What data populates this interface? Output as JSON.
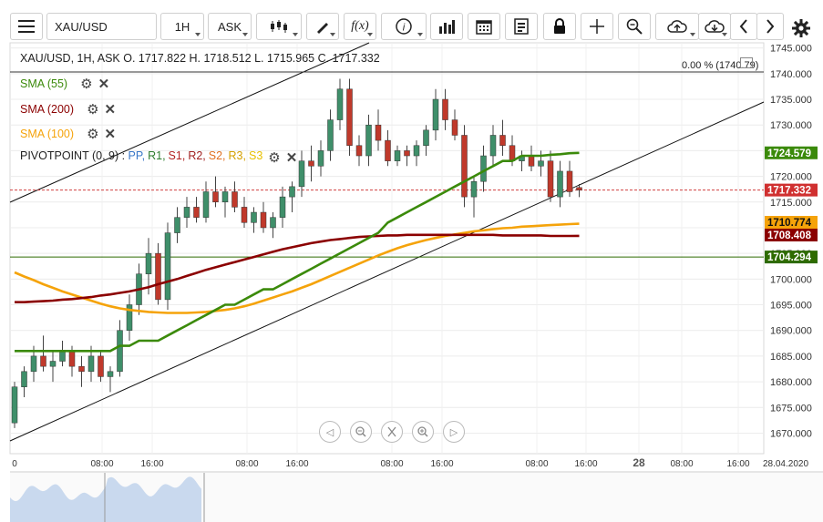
{
  "toolbar": {
    "symbol": "XAU/USD",
    "timeframe": "1H",
    "price_side": "ASK",
    "fx_label": "f(x)",
    "icons": [
      "menu-icon",
      "candlestick-icon",
      "draw-icon",
      "function-icon",
      "info-icon",
      "bar-chart-icon",
      "calendar-icon",
      "report-icon",
      "lock-icon",
      "crosshair-icon",
      "zoom-icon",
      "cloud-upload-icon",
      "cloud-download-icon",
      "chevron-left-icon",
      "chevron-right-icon",
      "settings-icon"
    ]
  },
  "legend": {
    "ohlc": "XAU/USD, 1H, ASK   O. 1717.822 H. 1718.512 L. 1715.965 C. 1717.332",
    "sma55": "SMA (55)",
    "sma200": "SMA (200)",
    "sma100": "SMA (100)",
    "pivot_name": "PIVOTPOINT (0, 9)",
    "pivot_sep": " : ",
    "pivot_items": [
      "PP,",
      "R1,",
      "S1,",
      "R2,",
      "S2,",
      "R3,",
      "S3"
    ],
    "pct_label": "0.00 % (1740.79)"
  },
  "colors": {
    "up": "#3f8f6a",
    "down": "#c0392b",
    "sma55": "#3b8a0a",
    "sma200": "#8b0000",
    "sma100": "#f5a30a",
    "pp": "#3a78c8",
    "r1": "#2e7d2e",
    "s1": "#b22222",
    "r2": "#a02020",
    "s2": "#e07020",
    "r3": "#d4a000",
    "s3": "#e8c000"
  },
  "chart_data": {
    "type": "candlestick",
    "title": "XAU/USD, 1H, ASK",
    "ylim": [
      1666,
      1746
    ],
    "y_ticks": [
      "1745.000",
      "1740.000",
      "1735.000",
      "1730.000",
      "1725.000",
      "1720.000",
      "1715.000",
      "1710.000",
      "1705.000",
      "1700.000",
      "1695.000",
      "1690.000",
      "1685.000",
      "1680.000",
      "1675.000",
      "1670.000"
    ],
    "x_ticks": [
      "0",
      "08:00",
      "16:00",
      "08:00",
      "16:00",
      "08:00",
      "16:00",
      "08:00",
      "16:00",
      "28",
      "08:00",
      "16:00",
      "28.04.2020"
    ],
    "price_labels": [
      {
        "name": "sma55",
        "value": "1724.579"
      },
      {
        "name": "last",
        "value": "1717.332"
      },
      {
        "name": "sma100",
        "value": "1710.774"
      },
      {
        "name": "sma200",
        "value": "1708.408"
      },
      {
        "name": "level",
        "value": "1704.294"
      }
    ],
    "candles": [
      [
        1672,
        1680,
        1671,
        1679
      ],
      [
        1679,
        1683,
        1677,
        1682
      ],
      [
        1682,
        1687,
        1680,
        1685
      ],
      [
        1685,
        1689,
        1682,
        1683
      ],
      [
        1683,
        1686,
        1680,
        1684
      ],
      [
        1684,
        1688,
        1683,
        1686
      ],
      [
        1686,
        1687,
        1681,
        1683
      ],
      [
        1683,
        1685,
        1679,
        1682
      ],
      [
        1682,
        1687,
        1680,
        1685
      ],
      [
        1685,
        1686,
        1680,
        1681
      ],
      [
        1681,
        1683,
        1678,
        1682
      ],
      [
        1682,
        1692,
        1681,
        1690
      ],
      [
        1690,
        1697,
        1688,
        1695
      ],
      [
        1695,
        1703,
        1693,
        1701
      ],
      [
        1701,
        1708,
        1697,
        1705
      ],
      [
        1705,
        1707,
        1695,
        1696
      ],
      [
        1696,
        1711,
        1694,
        1709
      ],
      [
        1709,
        1714,
        1707,
        1712
      ],
      [
        1712,
        1716,
        1710,
        1714
      ],
      [
        1714,
        1716,
        1711,
        1712
      ],
      [
        1712,
        1719,
        1711,
        1717
      ],
      [
        1717,
        1720,
        1714,
        1715
      ],
      [
        1715,
        1718,
        1712,
        1717
      ],
      [
        1717,
        1719,
        1713,
        1714
      ],
      [
        1714,
        1716,
        1710,
        1711
      ],
      [
        1711,
        1714,
        1709,
        1713
      ],
      [
        1713,
        1715,
        1709,
        1710
      ],
      [
        1710,
        1713,
        1708,
        1712
      ],
      [
        1712,
        1718,
        1710,
        1716
      ],
      [
        1716,
        1719,
        1713,
        1718
      ],
      [
        1718,
        1725,
        1716,
        1723
      ],
      [
        1723,
        1726,
        1719,
        1722
      ],
      [
        1722,
        1727,
        1720,
        1725
      ],
      [
        1725,
        1733,
        1723,
        1731
      ],
      [
        1731,
        1739,
        1729,
        1737
      ],
      [
        1737,
        1739,
        1724,
        1726
      ],
      [
        1726,
        1728,
        1722,
        1724
      ],
      [
        1724,
        1732,
        1722,
        1730
      ],
      [
        1730,
        1733,
        1725,
        1727
      ],
      [
        1727,
        1729,
        1722,
        1723
      ],
      [
        1723,
        1726,
        1722,
        1725
      ],
      [
        1725,
        1726,
        1722,
        1724
      ],
      [
        1724,
        1727,
        1722,
        1726
      ],
      [
        1726,
        1730,
        1724,
        1729
      ],
      [
        1729,
        1737,
        1727,
        1735
      ],
      [
        1735,
        1737,
        1729,
        1731
      ],
      [
        1731,
        1733,
        1727,
        1728
      ],
      [
        1728,
        1730,
        1714,
        1716
      ],
      [
        1716,
        1720,
        1712,
        1719
      ],
      [
        1719,
        1726,
        1717,
        1724
      ],
      [
        1724,
        1730,
        1722,
        1728
      ],
      [
        1728,
        1731,
        1724,
        1726
      ],
      [
        1726,
        1728,
        1722,
        1723
      ],
      [
        1723,
        1725,
        1721,
        1724
      ],
      [
        1724,
        1726,
        1721,
        1722
      ],
      [
        1722,
        1725,
        1720,
        1723
      ],
      [
        1723,
        1725,
        1715,
        1716
      ],
      [
        1716,
        1723,
        1714,
        1721
      ],
      [
        1721,
        1723,
        1716,
        1717
      ],
      [
        1717.822,
        1718.512,
        1715.965,
        1717.332
      ]
    ],
    "sma55": [
      1686,
      1686,
      1686,
      1686,
      1686,
      1686,
      1686,
      1686,
      1686,
      1686,
      1686,
      1687,
      1687,
      1688,
      1688,
      1688,
      1689,
      1690,
      1691,
      1692,
      1693,
      1694,
      1695,
      1695,
      1696,
      1697,
      1698,
      1698,
      1699,
      1700,
      1701,
      1702,
      1703,
      1704,
      1705,
      1706,
      1707,
      1708,
      1709,
      1711,
      1712,
      1713,
      1714,
      1715,
      1716,
      1717,
      1718,
      1719,
      1720,
      1721,
      1722,
      1723,
      1723,
      1724,
      1724,
      1724,
      1724.2,
      1724.3,
      1724.5,
      1724.579
    ],
    "sma200": [
      1695.5,
      1695.5,
      1695.6,
      1695.7,
      1695.8,
      1696,
      1696.1,
      1696.3,
      1696.5,
      1696.8,
      1697,
      1697.3,
      1697.6,
      1698,
      1698.4,
      1699,
      1699.5,
      1700,
      1700.6,
      1701.2,
      1701.8,
      1702.3,
      1702.8,
      1703.3,
      1703.8,
      1704.3,
      1704.8,
      1705.3,
      1705.8,
      1706.2,
      1706.6,
      1707,
      1707.3,
      1707.6,
      1707.8,
      1708,
      1708.2,
      1708.3,
      1708.4,
      1708.5,
      1708.5,
      1708.6,
      1708.6,
      1708.6,
      1708.6,
      1708.6,
      1708.6,
      1708.6,
      1708.6,
      1708.6,
      1708.6,
      1708.5,
      1708.5,
      1708.5,
      1708.5,
      1708.5,
      1708.4,
      1708.4,
      1708.4,
      1708.408
    ],
    "sma100": [
      1701.3,
      1700.5,
      1699.8,
      1699,
      1698.3,
      1697.6,
      1697,
      1696.4,
      1695.8,
      1695.2,
      1694.7,
      1694.3,
      1694,
      1693.8,
      1693.6,
      1693.5,
      1693.4,
      1693.4,
      1693.4,
      1693.5,
      1693.6,
      1693.8,
      1694,
      1694.3,
      1694.7,
      1695.2,
      1695.8,
      1696.4,
      1697,
      1697.6,
      1698.3,
      1699,
      1699.8,
      1700.6,
      1701.4,
      1702.2,
      1703,
      1703.8,
      1704.6,
      1705.3,
      1706,
      1706.6,
      1707.1,
      1707.6,
      1708,
      1708.4,
      1708.7,
      1709,
      1709.3,
      1709.5,
      1709.7,
      1709.9,
      1710,
      1710.2,
      1710.3,
      1710.4,
      1710.5,
      1710.6,
      1710.7,
      1710.774
    ]
  }
}
